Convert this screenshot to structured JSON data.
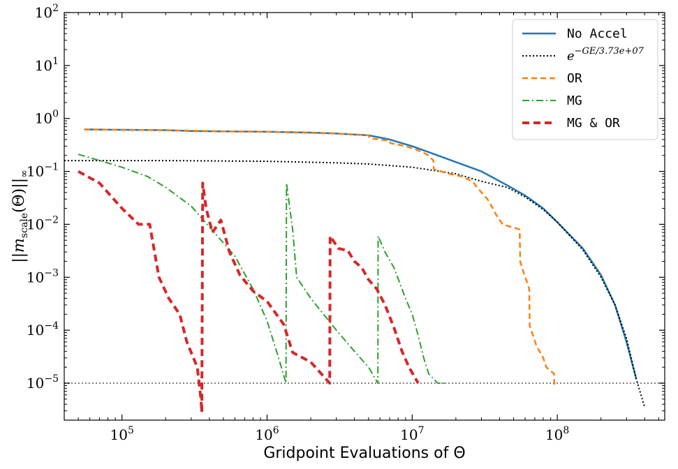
{
  "chart_data": {
    "type": "line",
    "title": "",
    "xlabel": "Gridpoint Evaluations of Θ",
    "ylabel": "||m_scale(Θ)||_∞",
    "xscale": "log",
    "yscale": "log",
    "xlim": [
      40000,
      550000000
    ],
    "ylim": [
      2e-06,
      100
    ],
    "x_ticks": [
      {
        "value": 100000,
        "base": "10",
        "exp": "5"
      },
      {
        "value": 1000000,
        "base": "10",
        "exp": "6"
      },
      {
        "value": 10000000,
        "base": "10",
        "exp": "7"
      },
      {
        "value": 100000000,
        "base": "10",
        "exp": "8"
      }
    ],
    "y_ticks": [
      {
        "value": 1e-05,
        "base": "10",
        "exp": "−5"
      },
      {
        "value": 0.0001,
        "base": "10",
        "exp": "−4"
      },
      {
        "value": 0.001,
        "base": "10",
        "exp": "−3"
      },
      {
        "value": 0.01,
        "base": "10",
        "exp": "−2"
      },
      {
        "value": 0.1,
        "base": "10",
        "exp": "−1"
      },
      {
        "value": 1,
        "base": "10",
        "exp": "0"
      },
      {
        "value": 10,
        "base": "10",
        "exp": "1"
      },
      {
        "value": 100,
        "base": "10",
        "exp": "2"
      }
    ],
    "legend_position": "top-right",
    "reference_line": {
      "y": 1e-05,
      "color": "#808080",
      "style": "dotted"
    },
    "series": [
      {
        "name": "No Accel",
        "color": "#1f77b4",
        "style": "solid",
        "points": [
          [
            55000,
            0.62
          ],
          [
            100000,
            0.61
          ],
          [
            200000,
            0.6
          ],
          [
            300000,
            0.58
          ],
          [
            500000,
            0.57
          ],
          [
            1000000,
            0.56
          ],
          [
            2000000,
            0.54
          ],
          [
            3000000,
            0.52
          ],
          [
            5000000,
            0.48
          ],
          [
            7000000,
            0.4
          ],
          [
            10000000,
            0.3
          ],
          [
            15000000,
            0.2
          ],
          [
            20000000,
            0.15
          ],
          [
            30000000,
            0.1
          ],
          [
            45000000,
            0.055
          ],
          [
            60000000,
            0.035
          ],
          [
            80000000,
            0.02
          ],
          [
            100000000,
            0.011
          ],
          [
            150000000,
            0.0035
          ],
          [
            200000000,
            0.0011
          ],
          [
            250000000,
            0.0003
          ],
          [
            300000000,
            6e-05
          ],
          [
            350000000,
            1.2e-05
          ]
        ]
      },
      {
        "name": "e^{-GE/3.73e+07}",
        "label_base": "e",
        "label_exp": "−GE/3.73e+07",
        "color": "#000000",
        "style": "dotted",
        "points": [
          [
            40000,
            0.16
          ],
          [
            200000,
            0.16
          ],
          [
            1000000,
            0.155
          ],
          [
            3000000,
            0.145
          ],
          [
            5000000,
            0.138
          ],
          [
            10000000,
            0.12
          ],
          [
            20000000,
            0.09
          ],
          [
            30000000,
            0.065
          ],
          [
            45000000,
            0.05
          ],
          [
            60000000,
            0.033
          ],
          [
            80000000,
            0.019
          ],
          [
            100000000,
            0.011
          ],
          [
            150000000,
            0.0033
          ],
          [
            200000000,
            0.001
          ],
          [
            250000000,
            0.0003
          ],
          [
            300000000,
            7e-05
          ],
          [
            350000000,
            1.2e-05
          ],
          [
            400000000,
            3.5e-06
          ]
        ]
      },
      {
        "name": "OR",
        "color": "#ff7f0e",
        "style": "dashed",
        "points": [
          [
            55000,
            0.62
          ],
          [
            200000,
            0.6
          ],
          [
            500000,
            0.57
          ],
          [
            1000000,
            0.56
          ],
          [
            3000000,
            0.52
          ],
          [
            5000000,
            0.48
          ],
          [
            5100000,
            0.42
          ],
          [
            7000000,
            0.38
          ],
          [
            7100000,
            0.34
          ],
          [
            9000000,
            0.3
          ],
          [
            11000000,
            0.25
          ],
          [
            13000000,
            0.2
          ],
          [
            14000000,
            0.16
          ],
          [
            14100000,
            0.11
          ],
          [
            18000000,
            0.09
          ],
          [
            22000000,
            0.08
          ],
          [
            26000000,
            0.065
          ],
          [
            28000000,
            0.05
          ],
          [
            30000000,
            0.04
          ],
          [
            33000000,
            0.03
          ],
          [
            36000000,
            0.02
          ],
          [
            38000000,
            0.015
          ],
          [
            42000000,
            0.01
          ],
          [
            55000000,
            0.008
          ],
          [
            55500000,
            0.002
          ],
          [
            60000000,
            0.001
          ],
          [
            62000000,
            0.0008
          ],
          [
            64000000,
            0.0006
          ],
          [
            64500000,
            0.00012
          ],
          [
            68000000,
            8e-05
          ],
          [
            72000000,
            5e-05
          ],
          [
            80000000,
            3e-05
          ],
          [
            84000000,
            2e-05
          ],
          [
            95000000,
            1.5e-05
          ],
          [
            95500000,
            8.5e-06
          ]
        ]
      },
      {
        "name": "MG",
        "color": "#2ca02c",
        "style": "dashdot",
        "points": [
          [
            50000,
            0.21
          ],
          [
            100000,
            0.12
          ],
          [
            150000,
            0.08
          ],
          [
            200000,
            0.05
          ],
          [
            300000,
            0.022
          ],
          [
            400000,
            0.009
          ],
          [
            600000,
            0.0025
          ],
          [
            800000,
            0.0006
          ],
          [
            1000000,
            0.00015
          ],
          [
            1200000,
            3e-05
          ],
          [
            1350000,
            1e-05
          ],
          [
            1360000,
            0.06
          ],
          [
            1500000,
            0.008
          ],
          [
            1600000,
            0.001
          ],
          [
            2000000,
            0.0004
          ],
          [
            3000000,
            0.0001
          ],
          [
            4000000,
            4e-05
          ],
          [
            5000000,
            2e-05
          ],
          [
            5800000,
            1e-05
          ],
          [
            5820000,
            0.006
          ],
          [
            6500000,
            0.003
          ],
          [
            7500000,
            0.0015
          ],
          [
            9000000,
            0.0004
          ],
          [
            10000000,
            0.0002
          ],
          [
            11000000,
            8e-05
          ],
          [
            12000000,
            3e-05
          ],
          [
            13000000,
            1.5e-05
          ],
          [
            15000000,
            1e-05
          ],
          [
            17000000,
            1e-05
          ]
        ]
      },
      {
        "name": "MG & OR",
        "color": "#d62728",
        "style": "dashed-bold",
        "points": [
          [
            50000,
            0.1
          ],
          [
            70000,
            0.06
          ],
          [
            100000,
            0.02
          ],
          [
            130000,
            0.01
          ],
          [
            155000,
            0.01
          ],
          [
            180000,
            0.001
          ],
          [
            210000,
            0.0004
          ],
          [
            250000,
            0.0002
          ],
          [
            280000,
            6e-05
          ],
          [
            330000,
            2e-05
          ],
          [
            350000,
            5e-06
          ],
          [
            355000,
            2.8e-06
          ],
          [
            360000,
            0.06
          ],
          [
            380000,
            0.02
          ],
          [
            420000,
            0.007
          ],
          [
            480000,
            0.012
          ],
          [
            550000,
            0.003
          ],
          [
            650000,
            0.0011
          ],
          [
            800000,
            0.00055
          ],
          [
            1000000,
            0.00035
          ],
          [
            1300000,
            0.00013
          ],
          [
            1500000,
            3.8e-05
          ],
          [
            2000000,
            2.5e-05
          ],
          [
            2700000,
            1e-05
          ],
          [
            2720000,
            0.006
          ],
          [
            3100000,
            0.0035
          ],
          [
            3600000,
            0.0032
          ],
          [
            4000000,
            0.002
          ],
          [
            4500000,
            0.0015
          ],
          [
            5000000,
            0.0009
          ],
          [
            5700000,
            0.0006
          ],
          [
            6500000,
            0.0003
          ],
          [
            7500000,
            0.00011
          ],
          [
            8500000,
            4e-05
          ],
          [
            9500000,
            2e-05
          ],
          [
            11000000,
            1e-05
          ]
        ]
      }
    ]
  }
}
